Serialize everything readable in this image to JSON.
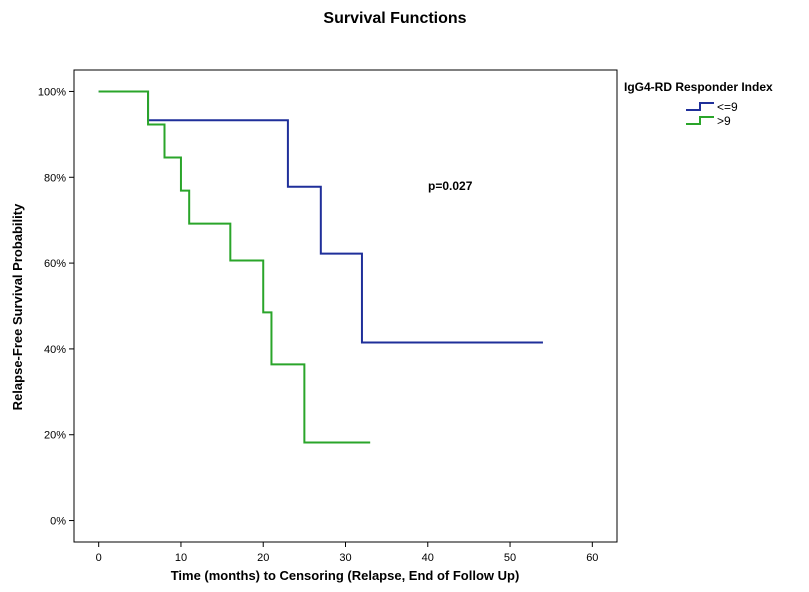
{
  "chart_data": {
    "type": "line",
    "title": "Survival Functions",
    "xlabel": "Time (months) to Censoring (Relapse, End of Follow Up)",
    "ylabel": "Relapse-Free Survival Probability",
    "xlim": [
      -3,
      63
    ],
    "ylim": [
      -5,
      105
    ],
    "x_ticks": [
      0,
      10,
      20,
      30,
      40,
      50,
      60
    ],
    "y_ticks": [
      0,
      20,
      40,
      60,
      80,
      100
    ],
    "y_tick_labels": [
      "0%",
      "20%",
      "40%",
      "60%",
      "80%",
      "100%"
    ],
    "grid": false,
    "legend_title": "IgG4-RD Responder Index",
    "legend_position": "right-top",
    "annotation": "p=0.027",
    "series": [
      {
        "name": "<=9",
        "color": "#1f2f9a",
        "step": true,
        "x": [
          0,
          6,
          23,
          27,
          32,
          54
        ],
        "y": [
          100,
          93.3,
          77.8,
          62.2,
          41.5,
          41.5
        ]
      },
      {
        "name": ">9",
        "color": "#2aa52a",
        "step": true,
        "x": [
          0,
          6,
          8,
          10,
          11,
          16,
          20,
          21,
          25,
          33
        ],
        "y": [
          100,
          92.3,
          84.6,
          76.9,
          69.2,
          60.6,
          48.5,
          36.4,
          18.2,
          18.2
        ]
      }
    ]
  }
}
